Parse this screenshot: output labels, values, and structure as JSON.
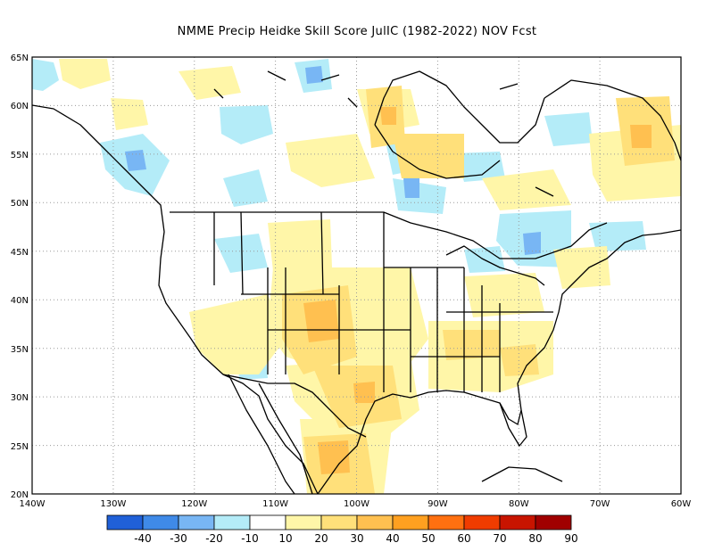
{
  "title": "NMME Precip Heidke Skill Score JulIC (1982-2022) NOV Fcst",
  "lat_ticks": [
    "65N",
    "60N",
    "55N",
    "50N",
    "45N",
    "40N",
    "35N",
    "30N",
    "25N",
    "20N"
  ],
  "lon_ticks": [
    "140W",
    "130W",
    "120W",
    "110W",
    "100W",
    "90W",
    "80W",
    "70W",
    "60W"
  ],
  "colorbar": {
    "colors": [
      "#2060d8",
      "#3f8ae8",
      "#78b6f4",
      "#b4ecf8",
      "#ffffff",
      "#fff6a8",
      "#ffe07a",
      "#ffc050",
      "#ffa020",
      "#ff7010",
      "#f03c00",
      "#c81400",
      "#a00000"
    ],
    "labels": [
      "-40",
      "-30",
      "-20",
      "-10",
      "10",
      "20",
      "30",
      "40",
      "50",
      "60",
      "70",
      "80",
      "90"
    ]
  },
  "palette": {
    "light_blue": "#b4ecf8",
    "mid_blue": "#78b6f4",
    "light_yellow": "#fff6a8",
    "yellow": "#ffe07a",
    "orange": "#ffc050"
  }
}
